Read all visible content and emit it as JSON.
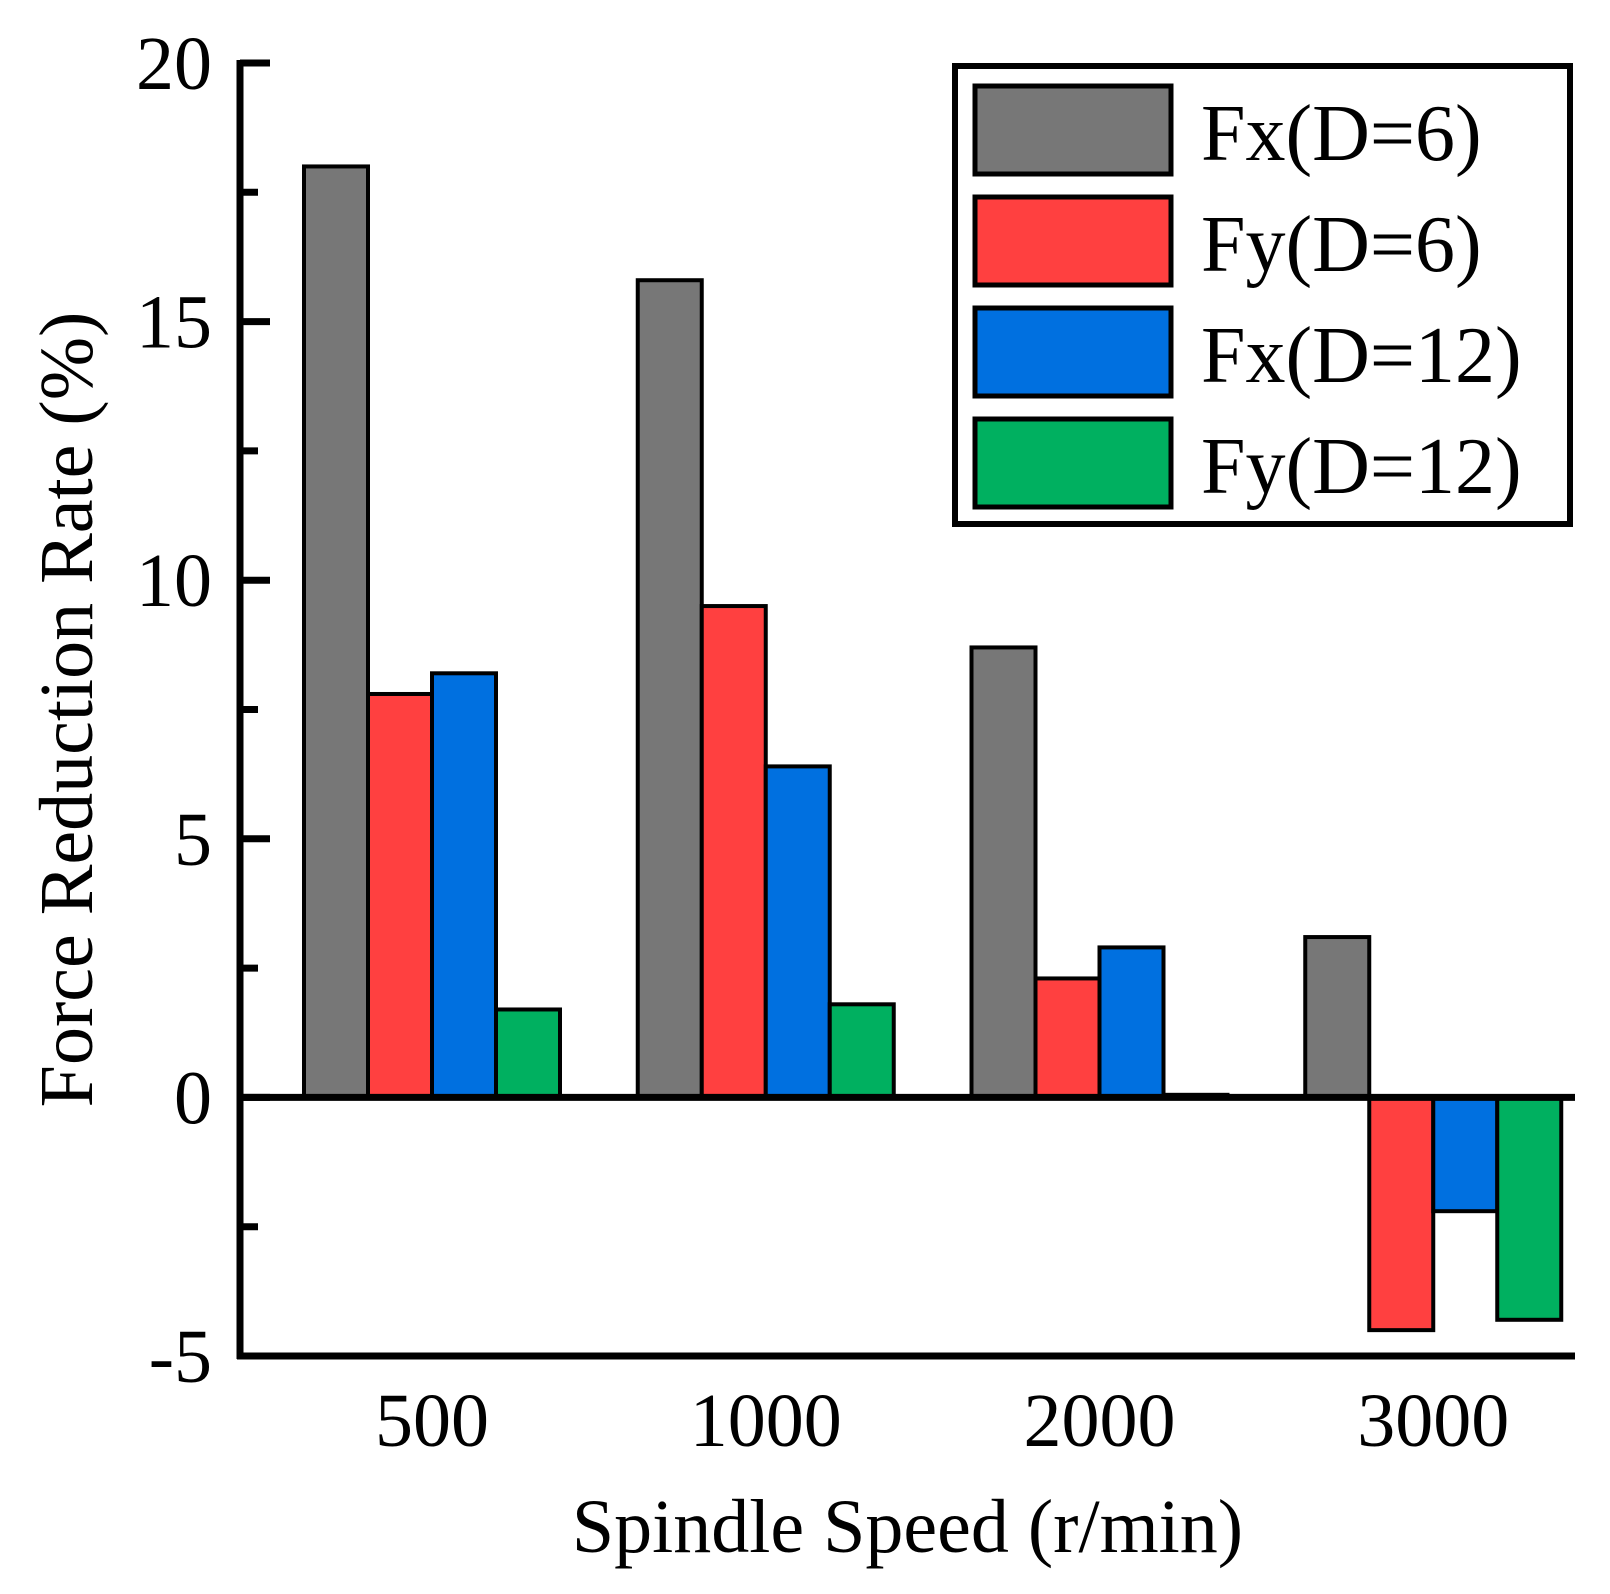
{
  "chart_data": {
    "type": "bar",
    "title": "",
    "xlabel": "Spindle Speed (r/min)",
    "ylabel": "Force Reduction Rate (%)",
    "categories": [
      "500",
      "1000",
      "2000",
      "3000"
    ],
    "ylim": [
      -5,
      20
    ],
    "yticks": [
      -5,
      0,
      5,
      10,
      15,
      20
    ],
    "ytick_labels": [
      "-5",
      "0",
      "5",
      "10",
      "15",
      "20"
    ],
    "minor_ticks": true,
    "grid": false,
    "legend_position": "top-right",
    "series": [
      {
        "name": "Fx(D=6)",
        "color": "#777777",
        "values": [
          18.0,
          15.8,
          8.7,
          3.1
        ]
      },
      {
        "name": "Fy(D=6)",
        "color": "#ff4040",
        "values": [
          7.8,
          9.5,
          2.3,
          -4.5
        ]
      },
      {
        "name": "Fx(D=12)",
        "color": "#0070e0",
        "values": [
          8.2,
          6.4,
          2.9,
          -2.2
        ]
      },
      {
        "name": "Fy(D=12)",
        "color": "#00b060",
        "values": [
          1.7,
          1.8,
          0.05,
          -4.3
        ]
      }
    ]
  }
}
